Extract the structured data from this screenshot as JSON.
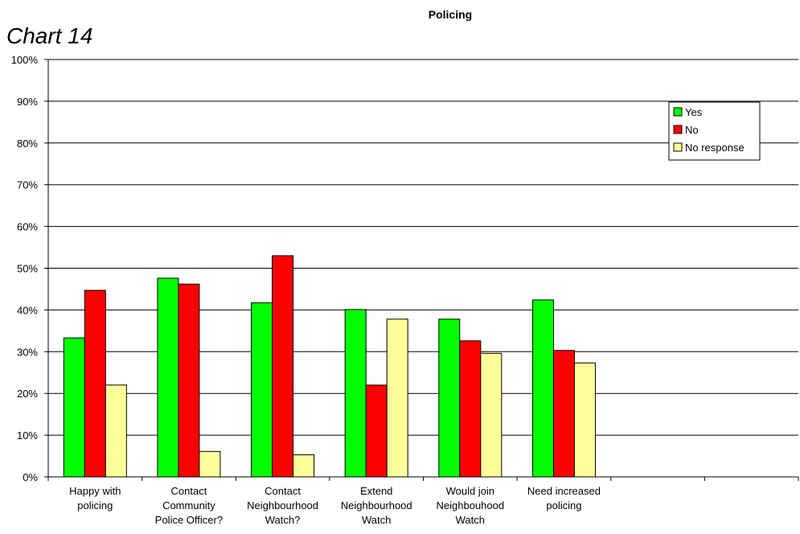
{
  "page": {
    "caption": "Chart 14"
  },
  "chart_data": {
    "type": "bar",
    "title": "Policing",
    "xlabel": "",
    "ylabel": "",
    "ylim": [
      0,
      100
    ],
    "y_tick_values": [
      0,
      10,
      20,
      30,
      40,
      50,
      60,
      70,
      80,
      90,
      100
    ],
    "y_tick_labels": [
      "0%",
      "10%",
      "20%",
      "30%",
      "40%",
      "50%",
      "60%",
      "70%",
      "80%",
      "90%",
      "100%"
    ],
    "grid": true,
    "legend_position": "top-right",
    "categories": [
      [
        "Happy with",
        "policing"
      ],
      [
        "Contact",
        "Community",
        "Police Officer?"
      ],
      [
        "Contact",
        "Neighbourhood",
        "Watch?"
      ],
      [
        "Extend",
        "Neighbourhood",
        "Watch"
      ],
      [
        "Would join",
        "Neighbouhood",
        "Watch"
      ],
      [
        "Need increased",
        "policing"
      ],
      [],
      []
    ],
    "series": [
      {
        "name": "Yes",
        "color": "#00ff00",
        "values": [
          33.3,
          47.6,
          41.7,
          40.1,
          37.8,
          42.4,
          null,
          null
        ]
      },
      {
        "name": "No",
        "color": "#ff0000",
        "values": [
          44.7,
          46.2,
          53.0,
          22.0,
          32.6,
          30.3,
          null,
          null
        ]
      },
      {
        "name": "No response",
        "color": "#ffff99",
        "values": [
          22.0,
          6.1,
          5.3,
          37.8,
          29.6,
          27.3,
          null,
          null
        ]
      }
    ]
  }
}
